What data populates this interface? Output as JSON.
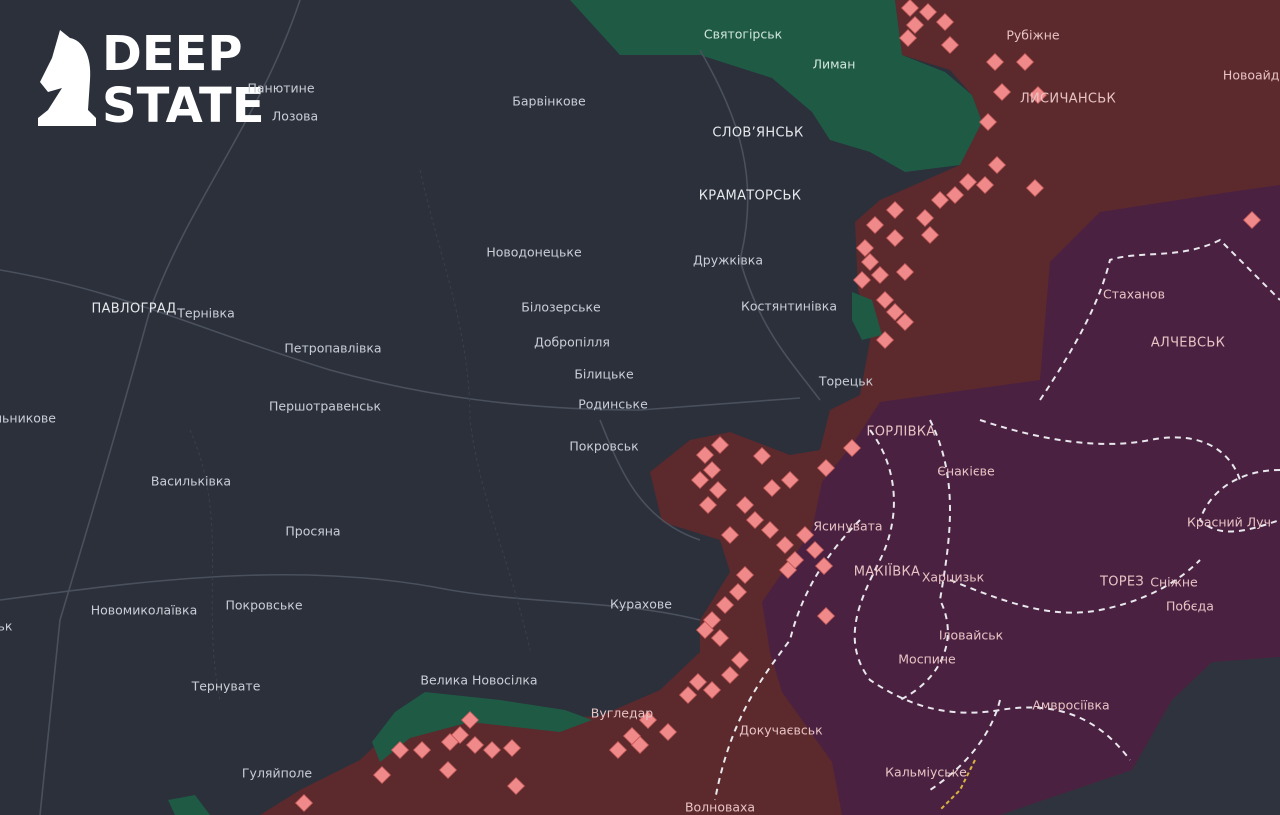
{
  "logo": {
    "line1": "DEEP",
    "line2": "STATE"
  },
  "places": [
    "Святогірськ",
    "Лиман",
    "Рубіжне",
    "Новоайда",
    "ЛИСИЧАНСЬК",
    "Панютине",
    "Лозова",
    "Барвінкове",
    "СЛОВ’ЯНСЬК",
    "КРАМАТОРСЬК",
    "Новодонецьке",
    "Дружківка",
    "ПАВЛОГРАД",
    "Тернівка",
    "Білозерське",
    "Костянтинівка",
    "Петропавлівка",
    "Добропілля",
    "Стаханов",
    "АЛЧЕВСЬК",
    "Білицьке",
    "Торецьк",
    "льникове",
    "Першотравенськ",
    "Родинське",
    "ГОРЛІВКА",
    "Покровськ",
    "Єнакієве",
    "Васильківка",
    "Красний Луч",
    "Ясинувата",
    "Просяна",
    "МАКІЇВКА",
    "Харцизьк",
    "ТОРЕЗ",
    "Сніжне",
    "Побєда",
    "Новомиколаївка",
    "Покровське",
    "Курахове",
    "ьк",
    "Іловайськ",
    "Моспине",
    "Велика Новосілка",
    "Тернувате",
    "Амвросіївка",
    "Вугледар",
    "Докучаєвськ",
    "Гуляйполе",
    "Кальміуське",
    "Волноваха"
  ]
}
